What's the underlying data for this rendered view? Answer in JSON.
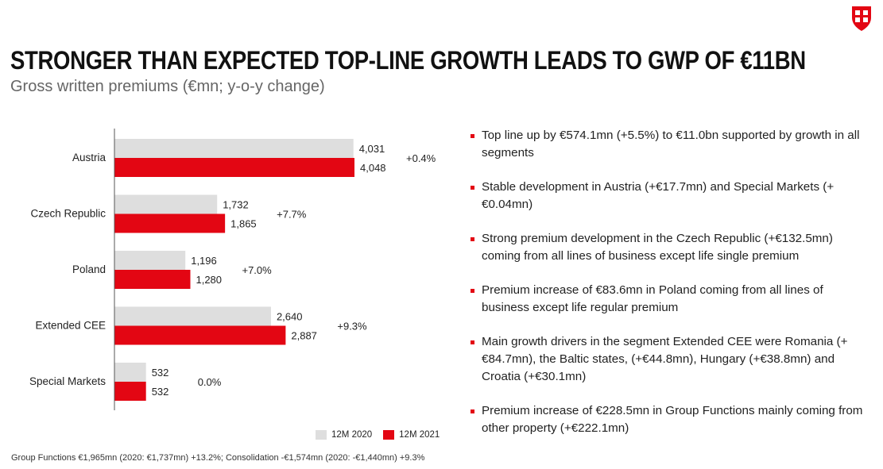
{
  "title": "STRONGER THAN EXPECTED TOP-LINE GROWTH LEADS TO GWP OF €11BN",
  "subtitle": "Gross written premiums (€mn; y-o-y change)",
  "colors": {
    "accent": "#e30613",
    "prior": "#dedede"
  },
  "logo_icon": "shield-logo-icon",
  "chart_data": {
    "type": "bar",
    "orientation": "horizontal",
    "categories": [
      "Austria",
      "Czech Republic",
      "Poland",
      "Extended CEE",
      "Special Markets"
    ],
    "series": [
      {
        "name": "12M 2020",
        "values": [
          4031,
          1732,
          1196,
          2640,
          532
        ],
        "labels": [
          "4,031",
          "1,732",
          "1,196",
          "2,640",
          "532"
        ],
        "color": "#dedede"
      },
      {
        "name": "12M 2021",
        "values": [
          4048,
          1865,
          1280,
          2887,
          532
        ],
        "labels": [
          "4,048",
          "1,865",
          "1,280",
          "2,887",
          "532"
        ],
        "color": "#e30613"
      }
    ],
    "changes": [
      "+0.4%",
      "+7.7%",
      "+7.0%",
      "+9.3%",
      "0.0%"
    ],
    "legend": [
      "12M 2020",
      "12M 2021"
    ],
    "xlim": [
      0,
      4048
    ]
  },
  "bullets": [
    "Top line up by €574.1mn (+5.5%) to €11.0bn supported by growth in all segments",
    "Stable development in Austria (+€17.7mn) and Special Markets (+€0.04mn)",
    "Strong premium development in the Czech Republic (+€132.5mn) coming from all lines of business except life single premium",
    "Premium increase of €83.6mn in Poland coming from all lines of business except life regular premium",
    "Main growth drivers in the segment Extended CEE were Romania (+€84.7mn), the Baltic states, (+€44.8mn), Hungary (+€38.8mn) and Croatia (+€30.1mn)",
    "Premium increase of €228.5mn in Group Functions mainly coming from other property (+€222.1mn)"
  ],
  "footnote": "Group Functions €1,965mn (2020: €1,737mn) +13.2%; Consolidation -€1,574mn (2020: -€1,440mn) +9.3%"
}
